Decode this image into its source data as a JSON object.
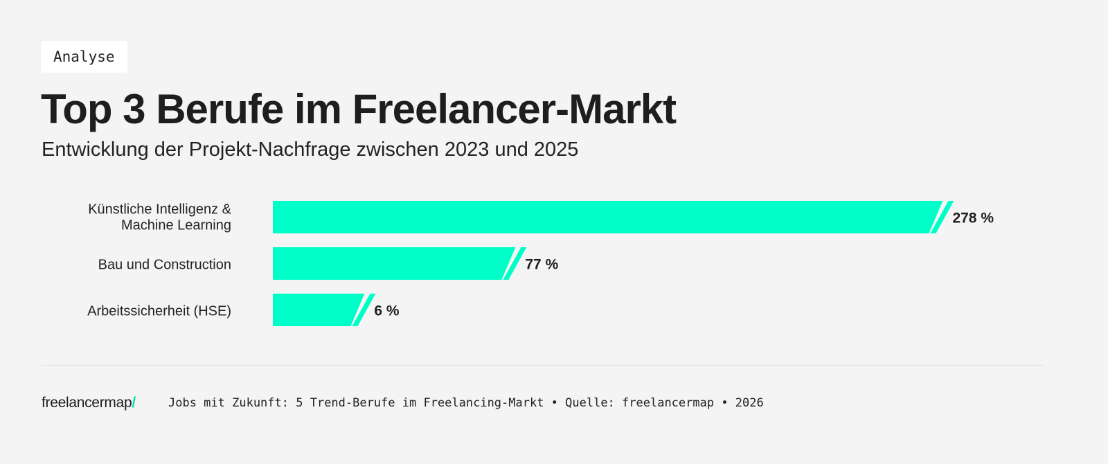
{
  "tag": "Analyse",
  "title": "Top 3 Berufe im Freelancer-Markt",
  "subtitle": "Entwicklung der Projekt-Nachfrage zwischen 2023 und 2025",
  "footer": {
    "logo": "freelancermap",
    "logo_slash": "/",
    "source": "Jobs mit Zukunft: 5 Trend-Berufe im Freelancing-Markt • Quelle: freelancermap • 2026"
  },
  "chart_data": {
    "type": "bar",
    "orientation": "horizontal",
    "categories": [
      [
        "Künstliche Intelligenz &",
        "Machine Learning"
      ],
      [
        "Bau und Construction"
      ],
      [
        "Arbeitssicherheit (HSE)"
      ]
    ],
    "values": [
      278,
      77,
      6
    ],
    "value_labels": [
      "278 %",
      "77 %",
      "6 %"
    ],
    "unit": "%",
    "grid": false,
    "colors": {
      "bar": "#00ffc8",
      "label": "#1e1e1e"
    }
  }
}
